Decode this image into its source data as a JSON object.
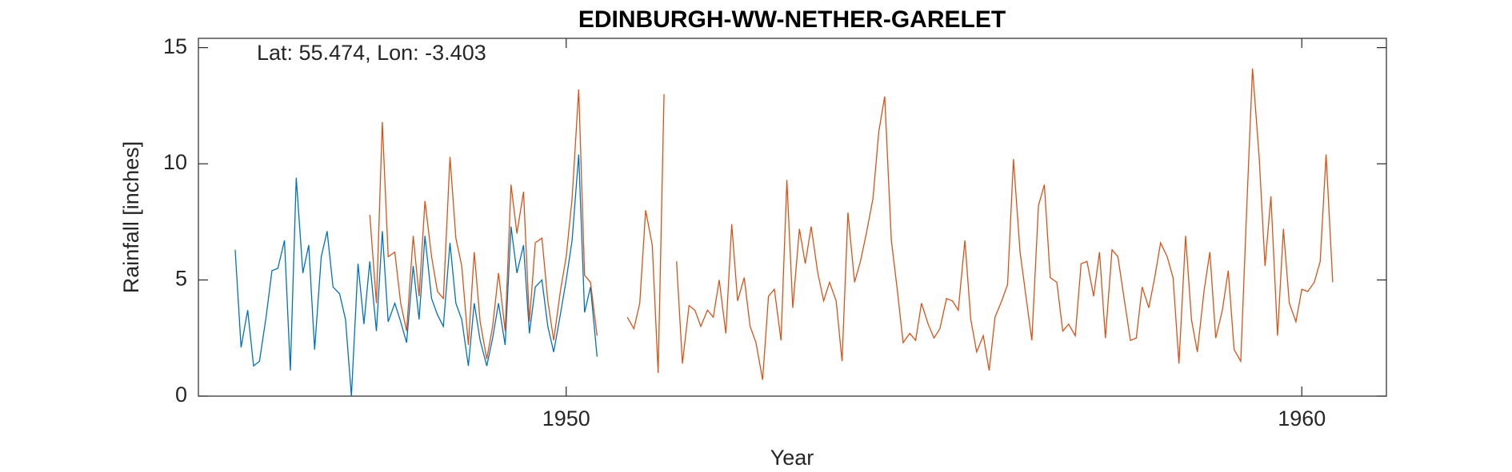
{
  "chart_data": {
    "type": "line",
    "title": "EDINBURGH-WW-NETHER-GARELET",
    "annotation": "Lat: 55.474, Lon: -3.403",
    "xlabel": "Year",
    "ylabel": "Rainfall [inches]",
    "xlim": [
      1945,
      1961.15
    ],
    "xticks": [
      1950,
      1960
    ],
    "ylim": [
      0,
      15.4
    ],
    "yticks": [
      0,
      5,
      10,
      15
    ],
    "grid": false,
    "x": [
      1945.5,
      1945.58,
      1945.67,
      1945.75,
      1945.83,
      1945.92,
      1946.0,
      1946.08,
      1946.17,
      1946.25,
      1946.33,
      1946.42,
      1946.5,
      1946.58,
      1946.67,
      1946.75,
      1946.83,
      1946.92,
      1947.0,
      1947.08,
      1947.17,
      1947.25,
      1947.33,
      1947.42,
      1947.5,
      1947.58,
      1947.67,
      1947.75,
      1947.83,
      1947.92,
      1948.0,
      1948.08,
      1948.17,
      1948.25,
      1948.33,
      1948.42,
      1948.5,
      1948.58,
      1948.67,
      1948.75,
      1948.83,
      1948.92,
      1949.0,
      1949.08,
      1949.17,
      1949.25,
      1949.33,
      1949.42,
      1949.5,
      1949.58,
      1949.67,
      1949.75,
      1949.83,
      1949.92,
      1950.0,
      1950.08,
      1950.17,
      1950.25,
      1950.33,
      1950.42,
      1950.5,
      1950.58,
      1950.67,
      1950.75,
      1950.83,
      1950.92,
      1951.0,
      1951.08,
      1951.17,
      1951.25,
      1951.33,
      1951.42,
      1951.5,
      1951.58,
      1951.67,
      1951.75,
      1951.83,
      1951.92,
      1952.0,
      1952.08,
      1952.17,
      1952.25,
      1952.33,
      1952.42,
      1952.5,
      1952.58,
      1952.67,
      1952.75,
      1952.83,
      1952.92,
      1953.0,
      1953.08,
      1953.17,
      1953.25,
      1953.33,
      1953.42,
      1953.5,
      1953.58,
      1953.67,
      1953.75,
      1953.83,
      1953.92,
      1954.0,
      1954.08,
      1954.17,
      1954.25,
      1954.33,
      1954.42,
      1954.5,
      1954.58,
      1954.67,
      1954.75,
      1954.83,
      1954.92,
      1955.0,
      1955.08,
      1955.17,
      1955.25,
      1955.33,
      1955.42,
      1955.5,
      1955.58,
      1955.67,
      1955.75,
      1955.83,
      1955.92,
      1956.0,
      1956.08,
      1956.17,
      1956.25,
      1956.33,
      1956.42,
      1956.5,
      1956.58,
      1956.67,
      1956.75,
      1956.83,
      1956.92,
      1957.0,
      1957.08,
      1957.17,
      1957.25,
      1957.33,
      1957.42,
      1957.5,
      1957.58,
      1957.67,
      1957.75,
      1957.83,
      1957.92,
      1958.0,
      1958.08,
      1958.17,
      1958.25,
      1958.33,
      1958.42,
      1958.5,
      1958.58,
      1958.67,
      1958.75,
      1958.83,
      1958.92,
      1959.0,
      1959.08,
      1959.17,
      1959.25,
      1959.33,
      1959.42,
      1959.5,
      1959.58,
      1959.67,
      1959.75,
      1959.83,
      1959.92,
      1960.0,
      1960.08,
      1960.17,
      1960.25,
      1960.33,
      1960.42
    ],
    "series": [
      {
        "color": "#0072bd",
        "values": [
          6.3,
          2.1,
          3.7,
          1.3,
          1.5,
          3.4,
          5.4,
          5.5,
          6.7,
          1.1,
          9.4,
          5.3,
          6.5,
          2.0,
          6.0,
          7.1,
          4.7,
          4.4,
          3.3,
          0.0,
          5.7,
          3.1,
          5.8,
          2.8,
          7.1,
          3.2,
          4.0,
          3.2,
          2.3,
          5.6,
          3.3,
          6.9,
          4.2,
          3.5,
          3.0,
          6.6,
          4.0,
          3.3,
          1.3,
          4.0,
          2.4,
          1.3,
          2.5,
          4.0,
          2.2,
          7.3,
          5.3,
          6.5,
          2.7,
          4.7,
          5.0,
          3.0,
          1.9,
          3.5,
          5.0,
          6.7,
          10.4,
          3.6,
          4.7,
          1.7,
          null,
          null,
          null,
          null,
          null,
          null,
          null,
          null,
          null,
          null,
          null,
          null,
          null,
          null,
          null,
          null,
          null,
          null,
          null,
          null,
          null,
          null,
          null,
          null,
          null,
          null,
          null,
          null,
          null,
          null,
          null,
          null,
          null,
          null,
          null,
          null,
          null,
          null,
          null,
          null,
          null,
          null,
          null,
          null,
          null,
          null,
          null,
          null,
          null,
          null,
          null,
          null,
          null,
          null,
          null,
          null,
          null,
          null,
          null,
          null,
          null,
          null,
          null,
          null,
          null,
          null,
          null,
          null,
          null,
          null,
          null,
          null,
          null,
          null,
          null,
          null,
          null,
          null,
          null,
          null,
          null,
          null,
          null,
          null,
          null,
          null,
          null,
          null,
          null,
          null,
          null,
          null,
          null,
          null,
          null,
          null,
          null,
          null,
          null,
          null,
          null,
          null,
          null,
          null,
          null,
          null,
          null,
          null,
          null,
          null,
          null,
          null,
          null,
          null,
          null,
          null,
          null,
          null,
          null,
          null
        ]
      },
      {
        "color": "#d95319",
        "values": [
          null,
          null,
          null,
          null,
          null,
          null,
          null,
          null,
          null,
          null,
          null,
          null,
          null,
          null,
          null,
          null,
          null,
          null,
          null,
          null,
          null,
          null,
          7.8,
          4.0,
          11.8,
          6.0,
          6.2,
          4.0,
          2.8,
          6.9,
          4.3,
          8.4,
          6.0,
          4.5,
          4.2,
          10.3,
          6.8,
          5.6,
          2.2,
          6.2,
          3.2,
          1.6,
          3.0,
          5.3,
          2.8,
          9.1,
          7.0,
          8.8,
          3.2,
          6.6,
          6.8,
          4.1,
          2.4,
          4.5,
          6.0,
          8.5,
          13.2,
          5.2,
          4.9,
          2.6,
          null,
          null,
          null,
          null,
          3.4,
          2.9,
          4.0,
          8.0,
          6.5,
          1.0,
          13.0,
          null,
          5.8,
          1.4,
          3.9,
          3.7,
          3.0,
          3.7,
          3.4,
          5.0,
          2.7,
          7.4,
          4.1,
          5.1,
          3.0,
          2.3,
          0.7,
          4.3,
          4.6,
          2.4,
          9.3,
          3.8,
          7.2,
          5.7,
          7.3,
          5.3,
          4.1,
          4.9,
          4.1,
          1.5,
          7.9,
          4.9,
          5.8,
          7.0,
          8.5,
          11.4,
          12.9,
          6.7,
          4.6,
          2.3,
          2.7,
          2.4,
          4.0,
          3.1,
          2.5,
          2.9,
          4.2,
          4.1,
          3.7,
          6.7,
          3.3,
          1.9,
          2.6,
          1.1,
          3.4,
          4.1,
          4.8,
          10.2,
          6.2,
          4.3,
          2.4,
          8.2,
          9.1,
          5.1,
          4.9,
          2.8,
          3.1,
          2.6,
          5.7,
          5.8,
          4.3,
          6.2,
          2.5,
          6.3,
          6.0,
          4.3,
          2.4,
          2.5,
          4.7,
          3.8,
          5.1,
          6.6,
          6.0,
          5.1,
          1.4,
          6.9,
          3.3,
          1.9,
          4.5,
          6.2,
          2.5,
          3.7,
          5.4,
          2.0,
          1.5,
          8.0,
          14.1,
          10.3,
          5.6,
          8.6,
          2.6,
          7.2,
          4.0,
          3.2,
          4.6,
          4.5,
          4.9,
          5.8,
          10.4,
          4.9
        ]
      }
    ]
  }
}
